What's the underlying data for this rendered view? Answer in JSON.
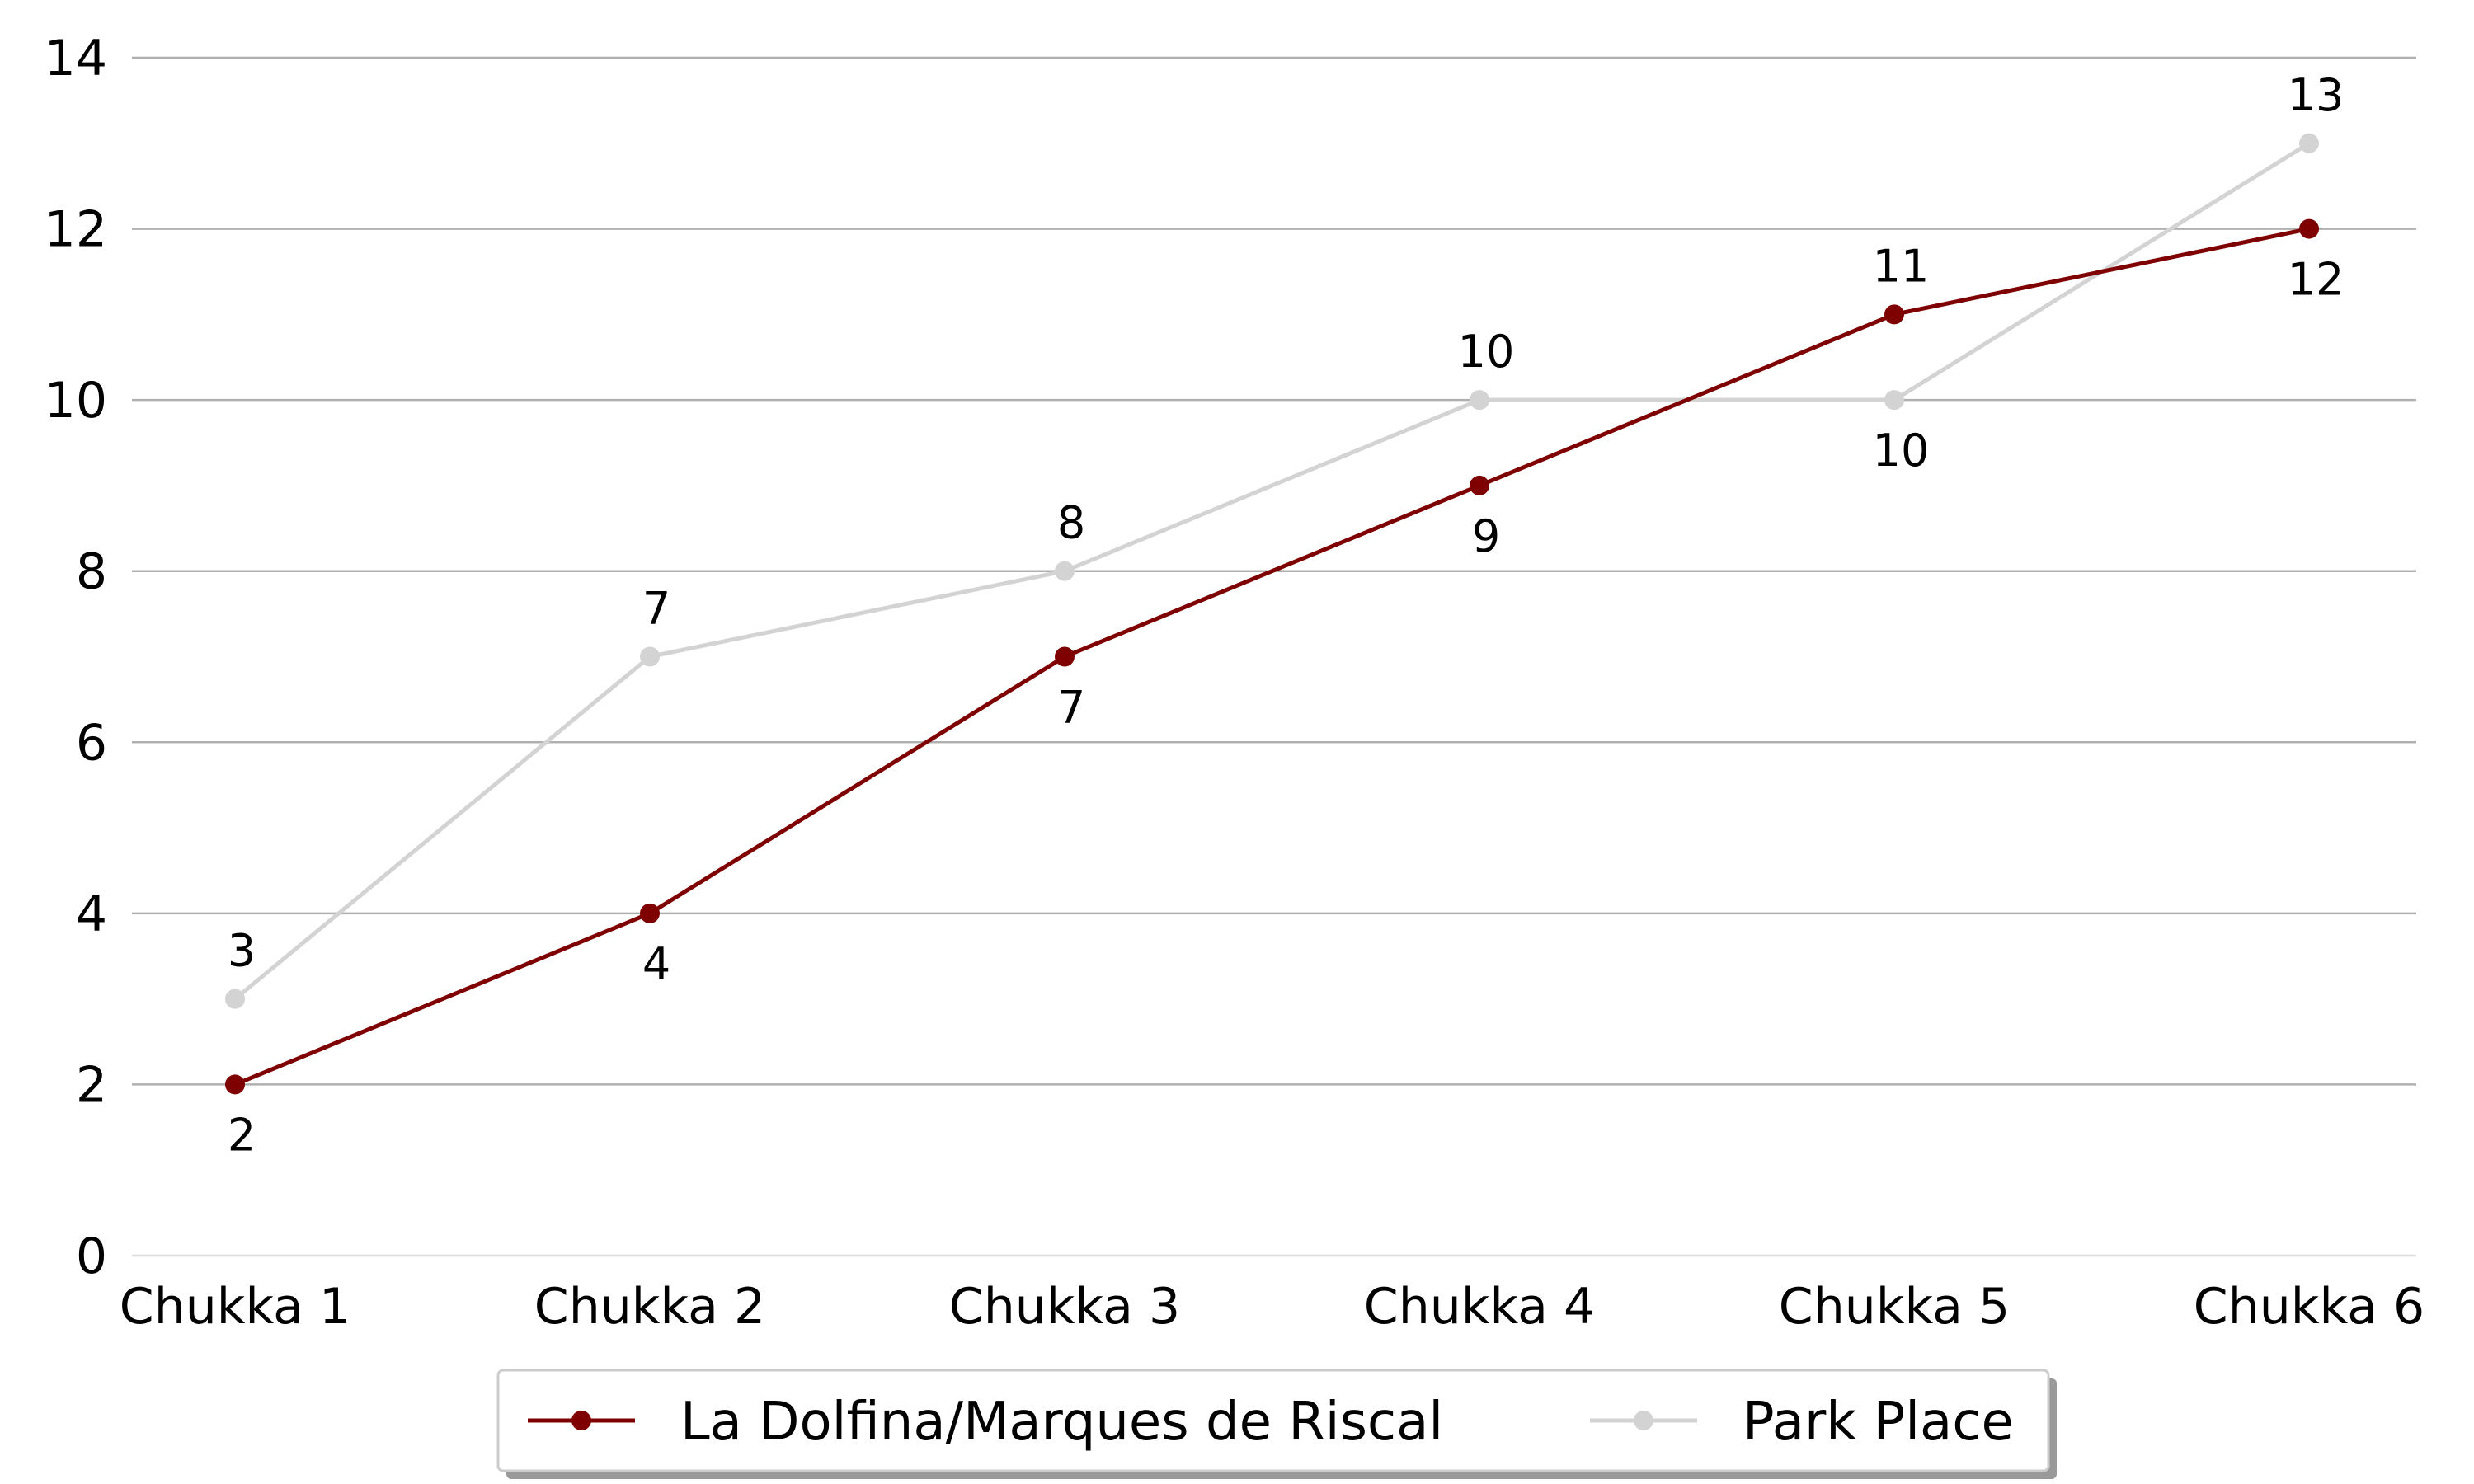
{
  "chart_data": {
    "type": "line",
    "categories": [
      "Chukka 1",
      "Chukka 2",
      "Chukka 3",
      "Chukka 4",
      "Chukka 5",
      "Chukka 6"
    ],
    "series": [
      {
        "name": "La Dolfina/Marques de Riscal",
        "values": [
          2,
          4,
          7,
          9,
          11,
          12
        ],
        "color": "#7f0000",
        "label_position": "auto"
      },
      {
        "name": "Park Place",
        "values": [
          3,
          7,
          8,
          10,
          10,
          13
        ],
        "color": "#d3d3d3",
        "label_position": "auto"
      }
    ],
    "yticks": [
      "0",
      "2",
      "4",
      "6",
      "8",
      "10",
      "12",
      "14"
    ],
    "ylim": [
      0,
      14
    ],
    "grid": "horizontal",
    "legend_position": "bottom-center"
  }
}
